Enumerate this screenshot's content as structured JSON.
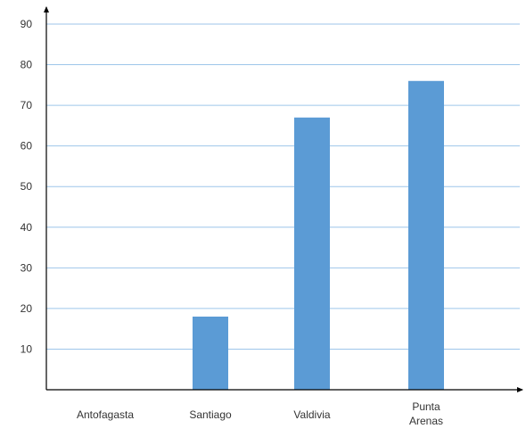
{
  "chart_data": {
    "type": "bar",
    "categories": [
      [
        "Antofagasta"
      ],
      [
        "Santiago"
      ],
      [
        "Valdivia"
      ],
      [
        "Punta",
        "Arenas"
      ]
    ],
    "values": [
      0,
      18,
      67,
      76
    ],
    "ylim": [
      0,
      90
    ],
    "yticks": [
      10,
      20,
      30,
      40,
      50,
      60,
      70,
      80,
      90
    ],
    "grid": true,
    "legend": "none",
    "colors": {
      "bar": "#5b9bd5",
      "grid": "#9ec6ea",
      "axis": "#000000",
      "text": "#333333"
    }
  }
}
